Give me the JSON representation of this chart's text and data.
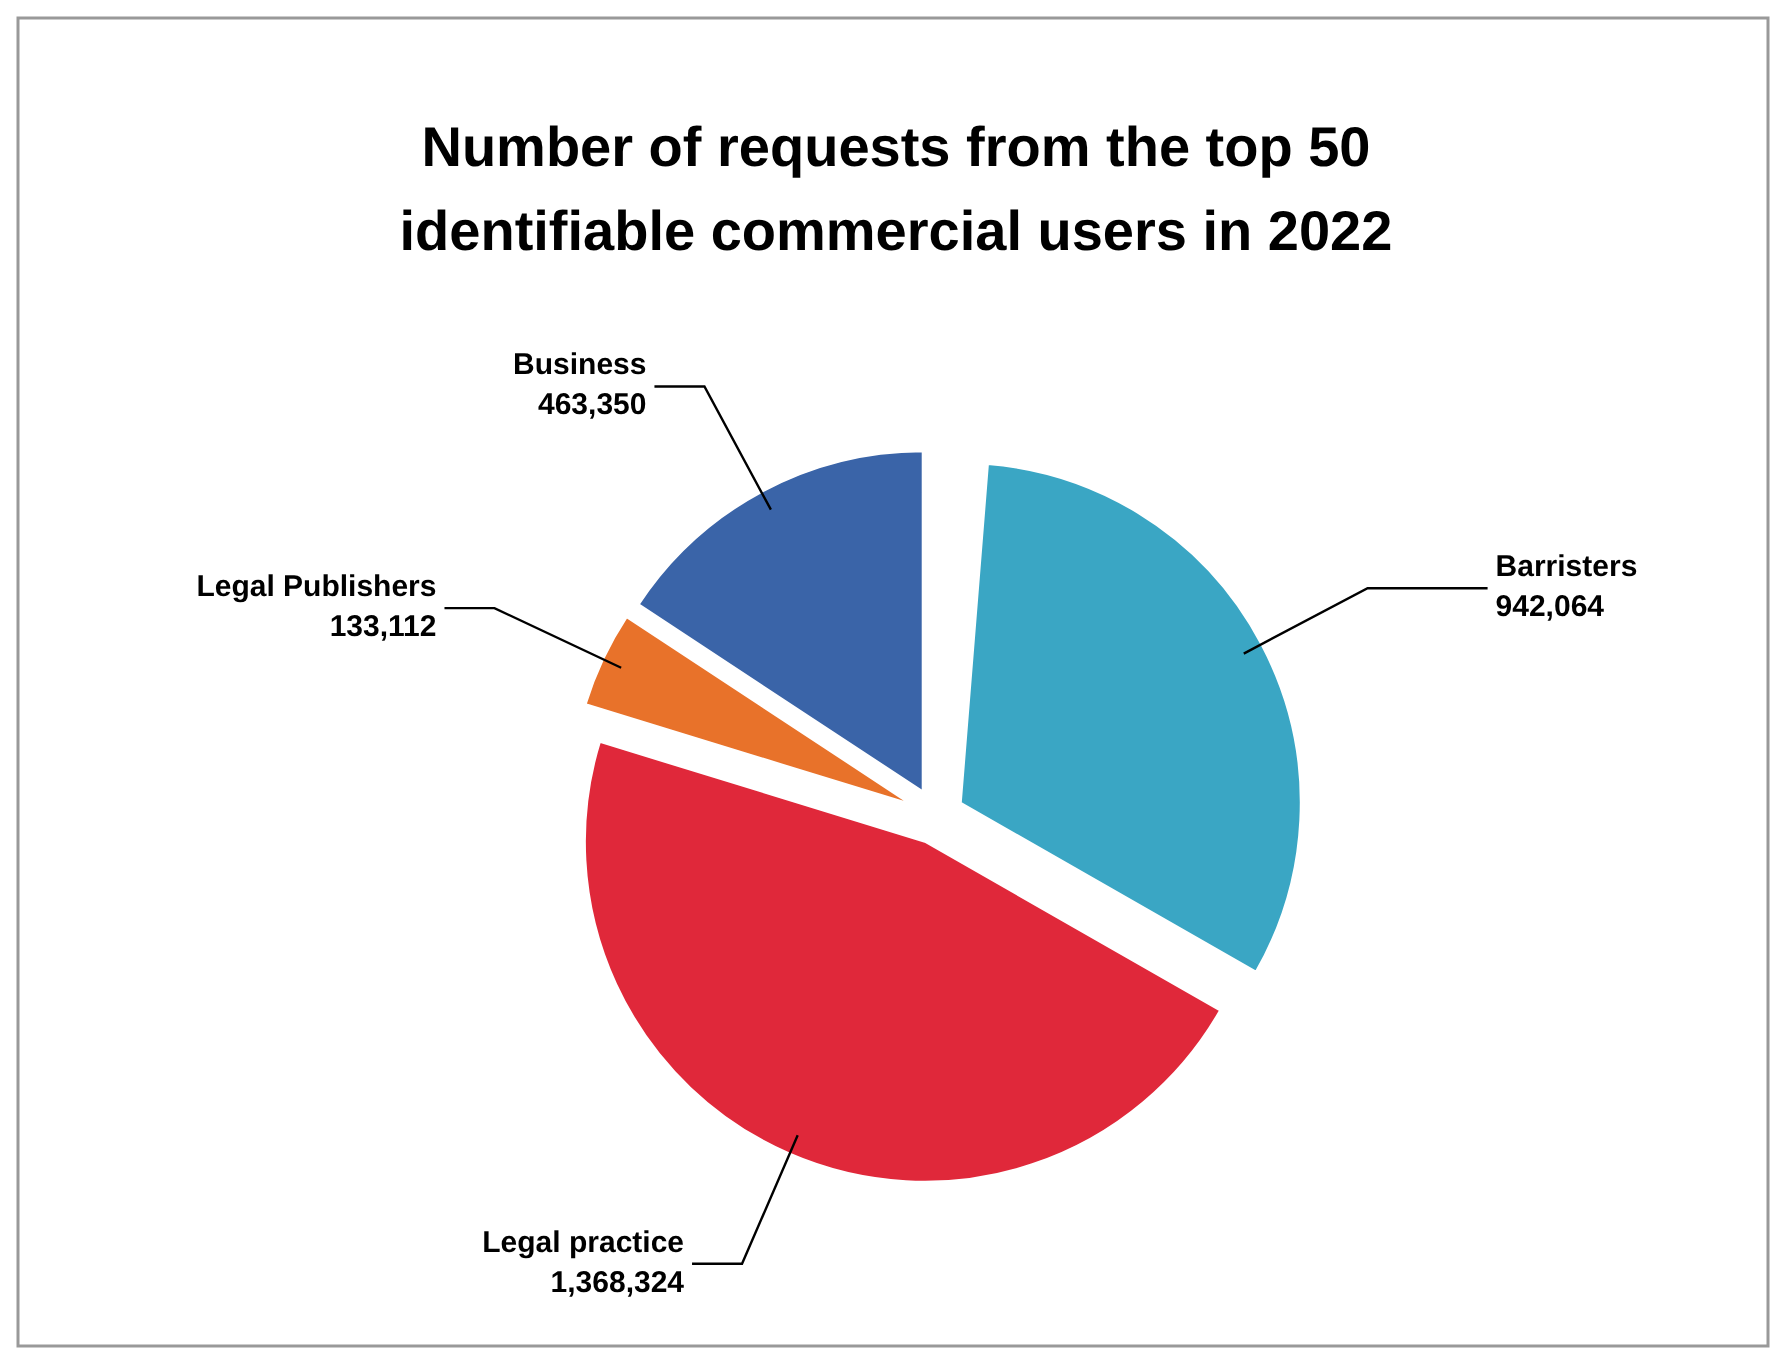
{
  "chart_data": {
    "type": "pie",
    "title": "Number of requests from the top 50 identifiable commercial users in 2022",
    "categories": [
      "Barristers",
      "Legal practice",
      "Legal Publishers",
      "Business"
    ],
    "values": [
      942064,
      1368324,
      133112,
      463350
    ],
    "colors": [
      "#3aa6c4",
      "#e0283a",
      "#e8722a",
      "#3a64a8"
    ],
    "value_labels": [
      "942,064",
      "1,368,324",
      "133,112",
      "463,350"
    ]
  }
}
